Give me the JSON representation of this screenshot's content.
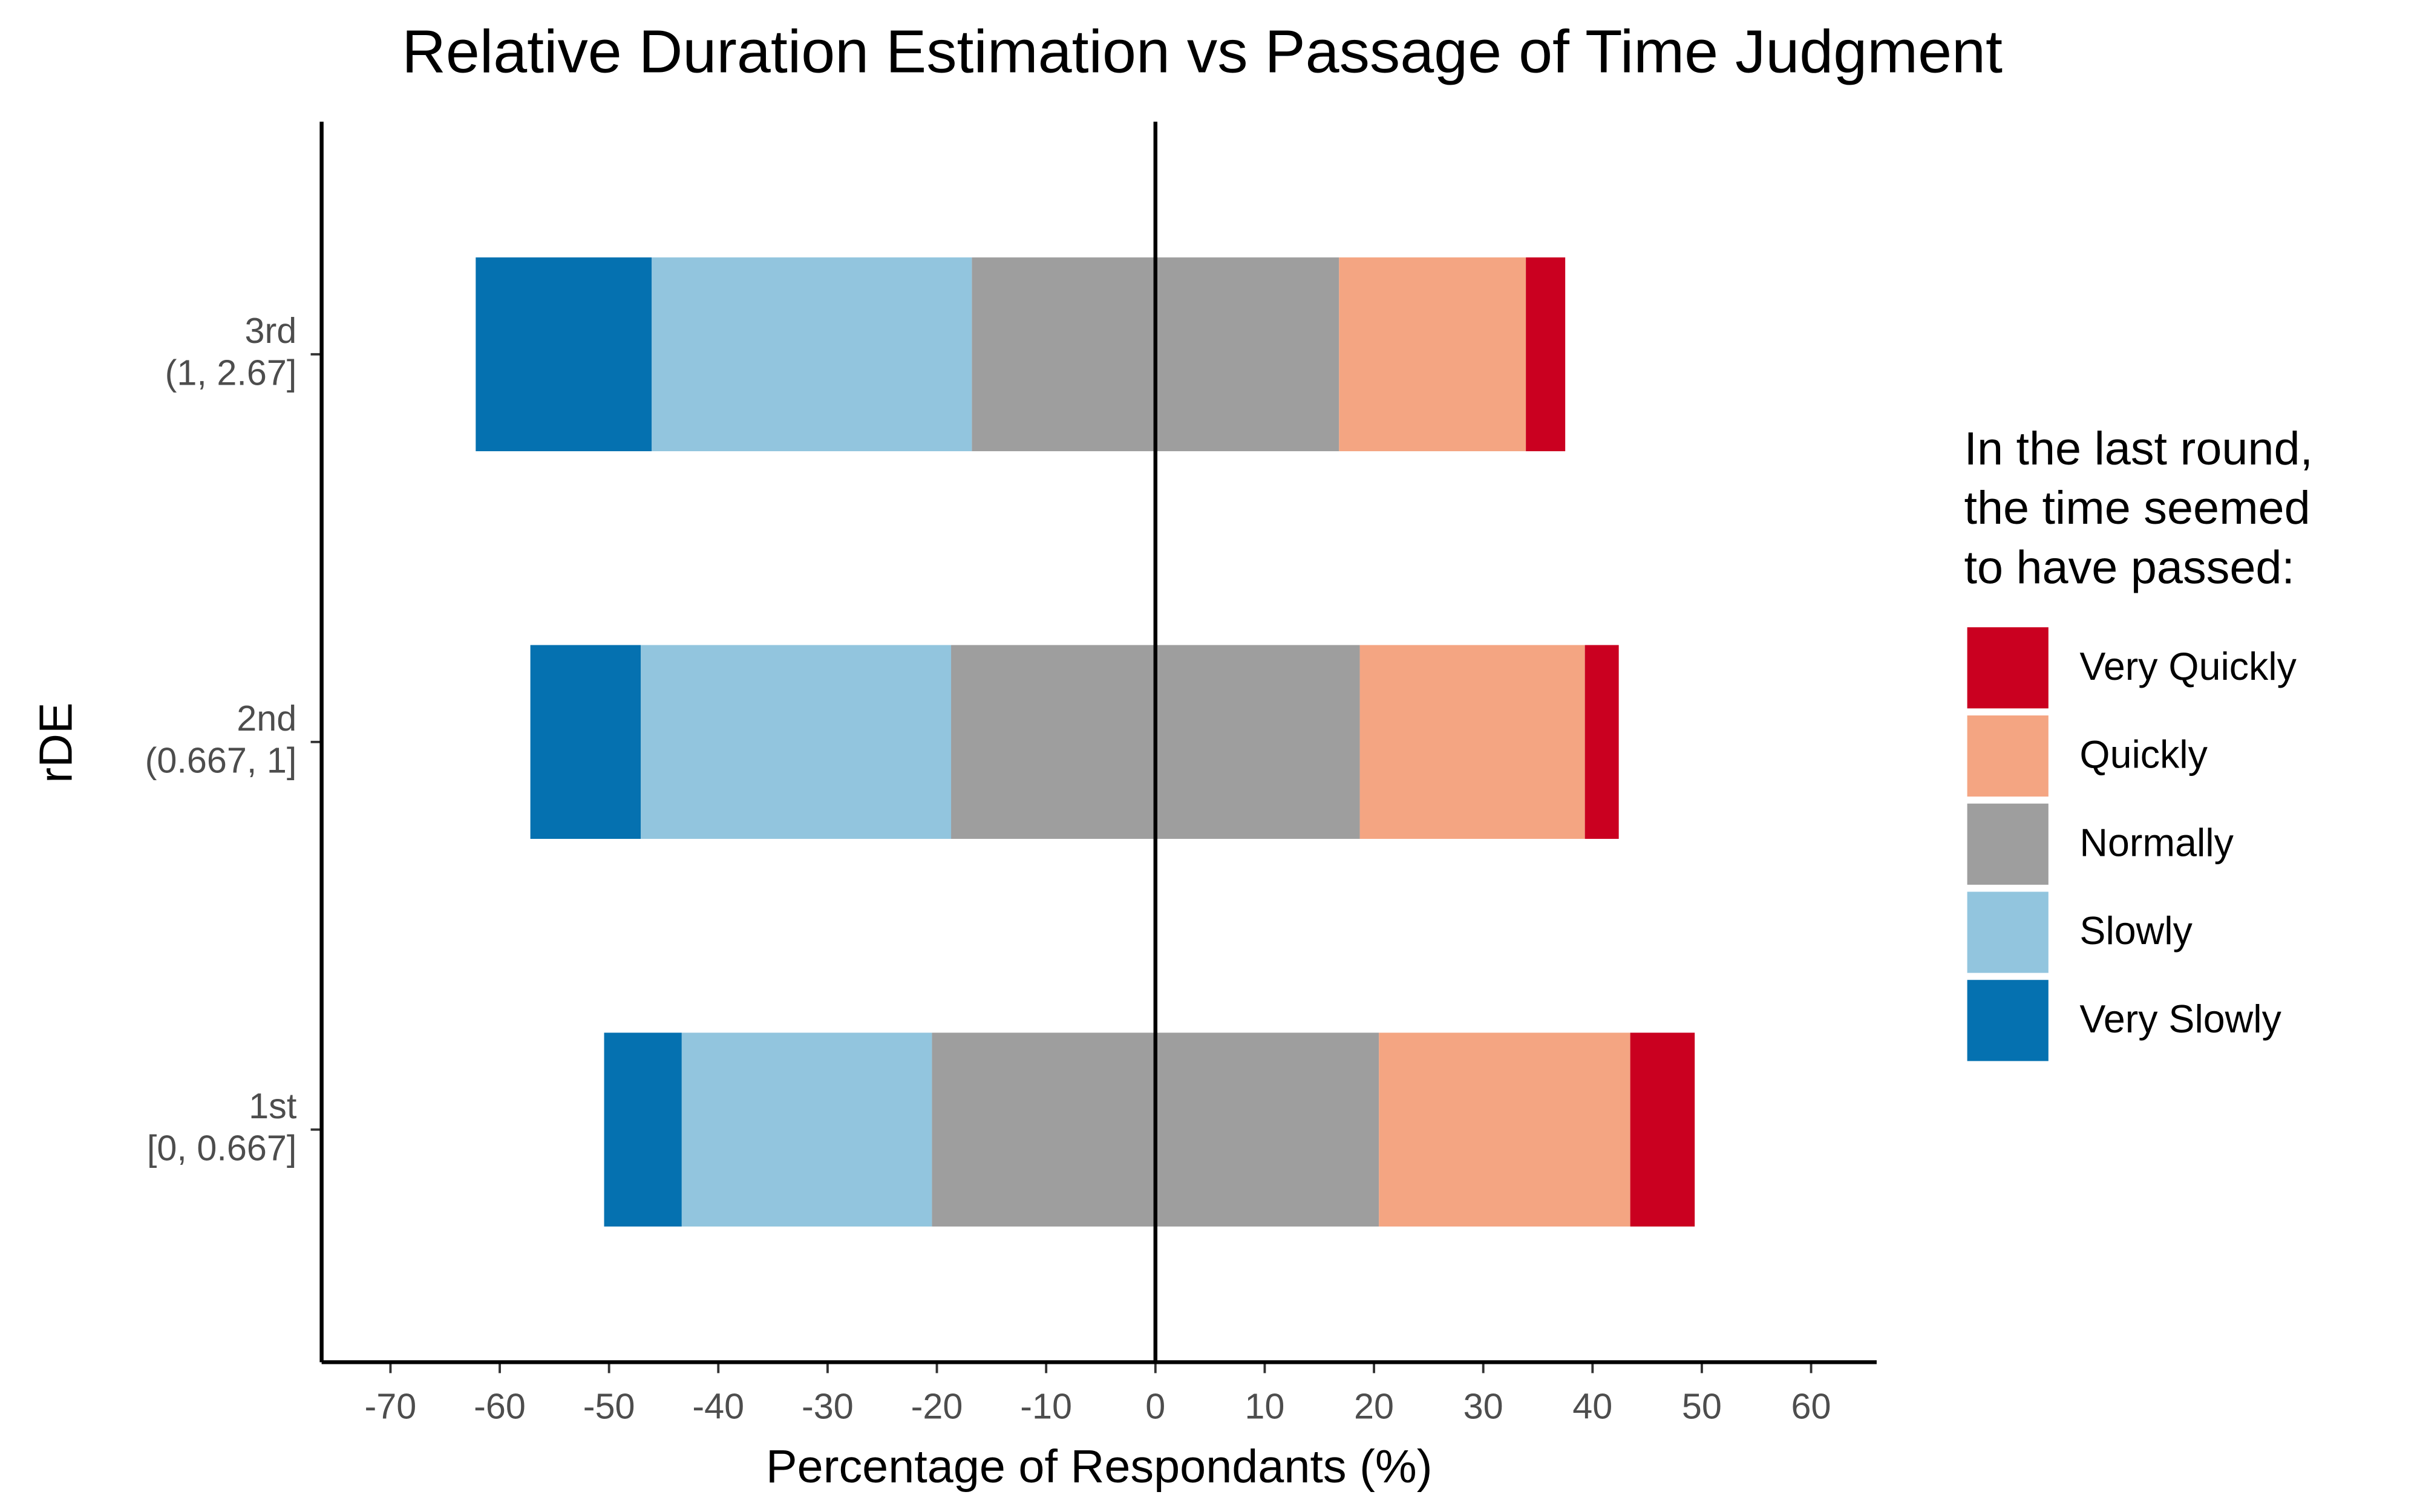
{
  "chart_data": {
    "type": "diverging-bar",
    "title": "Relative Duration Estimation vs Passage of Time Judgment",
    "xlabel": "Percentage of Respondants (%)",
    "ylabel": "rDE",
    "legend_title": "In the last round,\nthe time seemed\nto have passed:",
    "legend": "right",
    "categories": [
      "1st\n[0, 0.667]",
      "2nd\n(0.667, 1]",
      "3rd\n(1, 2.67]"
    ],
    "series": [
      {
        "name": "Very Quickly",
        "color": "#ca0020",
        "values": [
          5.9,
          3.1,
          3.6
        ]
      },
      {
        "name": "Quickly",
        "color": "#f4a582",
        "values": [
          23.0,
          20.6,
          17.1
        ]
      },
      {
        "name": "Normally",
        "color": "#9e9e9e",
        "values": [
          40.9,
          37.4,
          33.6
        ]
      },
      {
        "name": "Slowly",
        "color": "#92c5de",
        "values": [
          22.9,
          28.4,
          29.3
        ]
      },
      {
        "name": "Very Slowly",
        "color": "#0571b0",
        "values": [
          7.1,
          10.1,
          16.1
        ]
      }
    ],
    "xlim": [
      -76.3,
      66
    ],
    "xticks": [
      -70,
      -60,
      -50,
      -40,
      -30,
      -20,
      -10,
      0,
      10,
      20,
      30,
      40,
      50,
      60
    ]
  }
}
